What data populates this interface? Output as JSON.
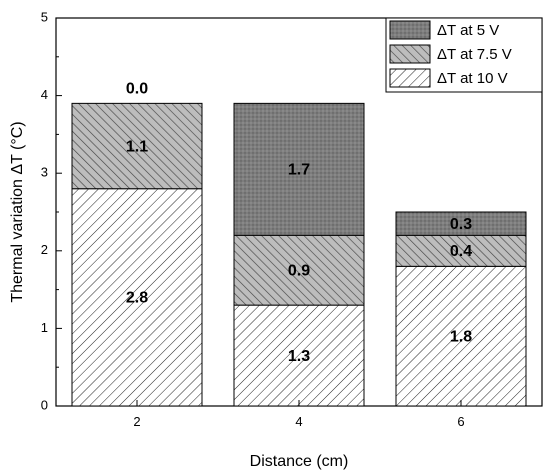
{
  "chart_data": {
    "type": "bar",
    "stacked": true,
    "categories": [
      "2",
      "4",
      "6"
    ],
    "series": [
      {
        "name": "ΔT at 10 V",
        "values": [
          2.8,
          1.3,
          1.8
        ],
        "labels": [
          "2.8",
          "1.3",
          "1.8"
        ],
        "pattern": "diagonal-right"
      },
      {
        "name": "ΔT at 7.5 V",
        "values": [
          1.1,
          0.9,
          0.4
        ],
        "labels": [
          "1.1",
          "0.9",
          "0.4"
        ],
        "pattern": "diagonal-left"
      },
      {
        "name": "ΔT at 5 V",
        "values": [
          0.0,
          1.7,
          0.3
        ],
        "labels": [
          "0.0",
          "1.7",
          "0.3"
        ],
        "pattern": "dots"
      }
    ],
    "xlabel": "Distance (cm)",
    "ylabel": "Thermal variation ΔT (°C)",
    "ylim": [
      0,
      5
    ],
    "yticks": [
      "0",
      "1",
      "2",
      "3",
      "4",
      "5"
    ],
    "grid": false,
    "legend_position": "top-right",
    "colors": {
      "fill_10v": "#ffffff",
      "fill_7_5v": "#b5b5b5",
      "fill_5v": "#7f7f7f",
      "stroke": "#000000"
    }
  }
}
